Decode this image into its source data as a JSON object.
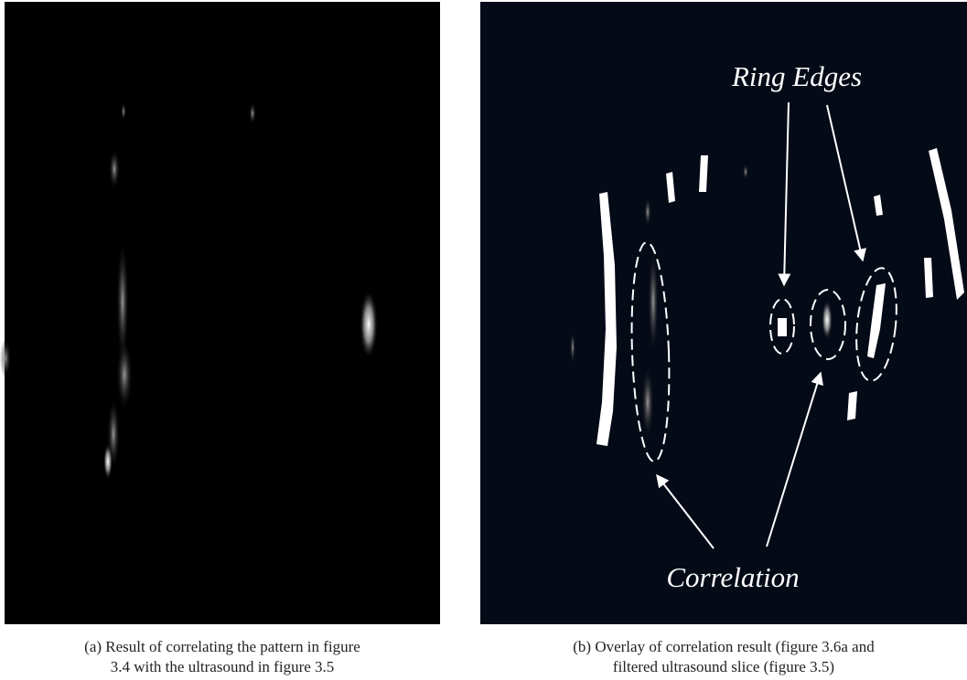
{
  "figure": {
    "panels": [
      {
        "caption_lines": [
          "(a) Result of correlating the pattern in figure",
          "3.4 with the ultrasound in figure 3.5"
        ]
      },
      {
        "caption_lines": [
          "(b) Overlay of correlation result (figure 3.6a and",
          "filtered ultrasound slice (figure 3.5)"
        ],
        "annotations": [
          "Ring Edges",
          "Correlation"
        ]
      }
    ]
  }
}
